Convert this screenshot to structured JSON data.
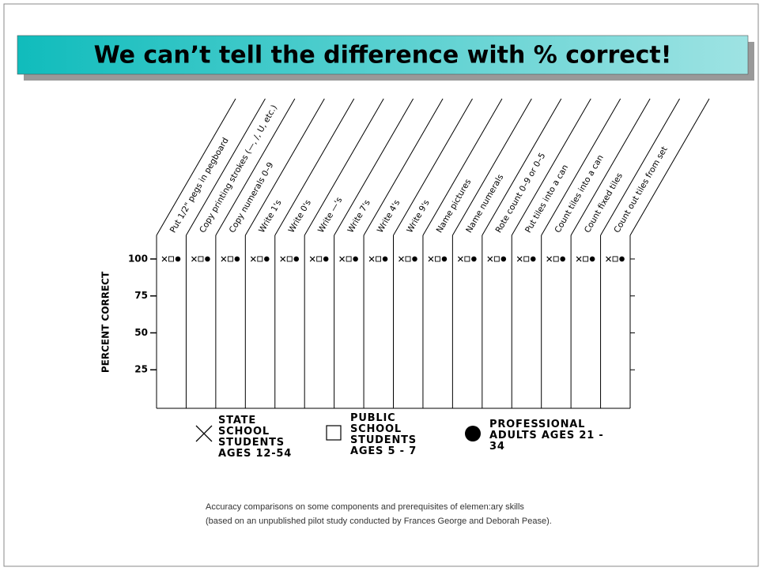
{
  "chart_data": {
    "type": "dot",
    "title": "We can’t tell the difference with % correct!",
    "y_label": "PERCENT CORRECT",
    "categories": [
      "Put 1/2\" pegs in pegboard",
      "Copy printing strokes (—, /, U, etc.)",
      "Copy numerals 0–9",
      "Write 1's",
      "Write 0's",
      "Write —'s",
      "Write 7's",
      "Write 4's",
      "Write 9's",
      "Name pictures",
      "Name numerals",
      "Rote count 0–9 or 0–5",
      "Put tiles into a can",
      "Count tiles into a can",
      "Count fixed tiles",
      "Count out tiles from set"
    ],
    "series": [
      {
        "name": "STATE SCHOOL STUDENTS AGES 12-54",
        "marker": "x",
        "color": "#000000",
        "values": [
          100,
          100,
          100,
          100,
          100,
          100,
          100,
          100,
          100,
          100,
          100,
          100,
          100,
          100,
          100,
          100
        ]
      },
      {
        "name": "PUBLIC SCHOOL STUDENTS AGES 5 - 7",
        "marker": "square",
        "color": "#000000",
        "values": [
          100,
          100,
          100,
          100,
          100,
          100,
          100,
          100,
          100,
          100,
          100,
          100,
          100,
          100,
          100,
          100
        ]
      },
      {
        "name": "PROFESSIONAL ADULTS AGES 21 - 34",
        "marker": "circle",
        "color": "#000000",
        "values": [
          100,
          100,
          100,
          100,
          100,
          100,
          100,
          100,
          100,
          100,
          100,
          100,
          100,
          100,
          100,
          100
        ]
      }
    ],
    "ylim": [
      0,
      116
    ],
    "yticks": [
      25,
      50,
      75,
      100
    ],
    "notes": [
      "Accuracy comparisons on some components and prerequisites of elemen:ary skills",
      "(based on an unpublished pilot study conducted by Frances George and Deborah Pease)."
    ]
  }
}
